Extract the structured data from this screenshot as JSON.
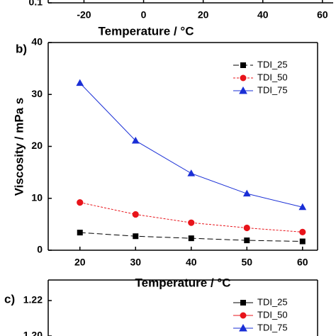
{
  "chart_data": [
    {
      "type": "line",
      "x_label": "Temperature / °C",
      "xlim": [
        -32,
        63.6
      ],
      "xticks": [
        -20,
        0,
        20,
        40,
        60
      ],
      "ylim": [
        0.1,
        1
      ],
      "yticks": [
        0.1
      ]
    },
    {
      "type": "line",
      "panel_label": "b)",
      "x_label": "Temperature / °C",
      "y_label": "Viscosity / mPa s",
      "x": [
        20,
        30,
        40,
        50,
        60
      ],
      "xlim": [
        14.3,
        62.7
      ],
      "xticks": [
        20,
        30,
        40,
        50,
        60
      ],
      "ylim": [
        0,
        40
      ],
      "yticks": [
        0,
        10,
        20,
        30,
        40
      ],
      "legend": "upper right",
      "series": [
        {
          "name": "TDI_25",
          "color": "#000000",
          "marker": "square",
          "linestyle": "dashed",
          "values": [
            3.4,
            2.7,
            2.3,
            1.9,
            1.7
          ]
        },
        {
          "name": "TDI_50",
          "color": "#e8141b",
          "marker": "circle",
          "linestyle": "dotted",
          "values": [
            9.2,
            6.9,
            5.3,
            4.3,
            3.5
          ]
        },
        {
          "name": "TDI_75",
          "color": "#1a2fd6",
          "marker": "triangle",
          "linestyle": "solid",
          "values": [
            32.2,
            21.1,
            14.8,
            10.9,
            8.3
          ]
        }
      ]
    },
    {
      "type": "line",
      "panel_label": "c)",
      "ylim": [
        1.2,
        1.2316
      ],
      "yticks": [
        1.22,
        {
          "value": 1.2,
          "label": "1.20"
        }
      ],
      "legend": "upper right",
      "series": [
        {
          "name": "TDI_25",
          "color": "#000000",
          "marker": "square"
        },
        {
          "name": "TDI_50",
          "color": "#e8141b",
          "marker": "circle"
        },
        {
          "name": "TDI_75",
          "color": "#1a2fd6",
          "marker": "triangle"
        }
      ]
    }
  ]
}
